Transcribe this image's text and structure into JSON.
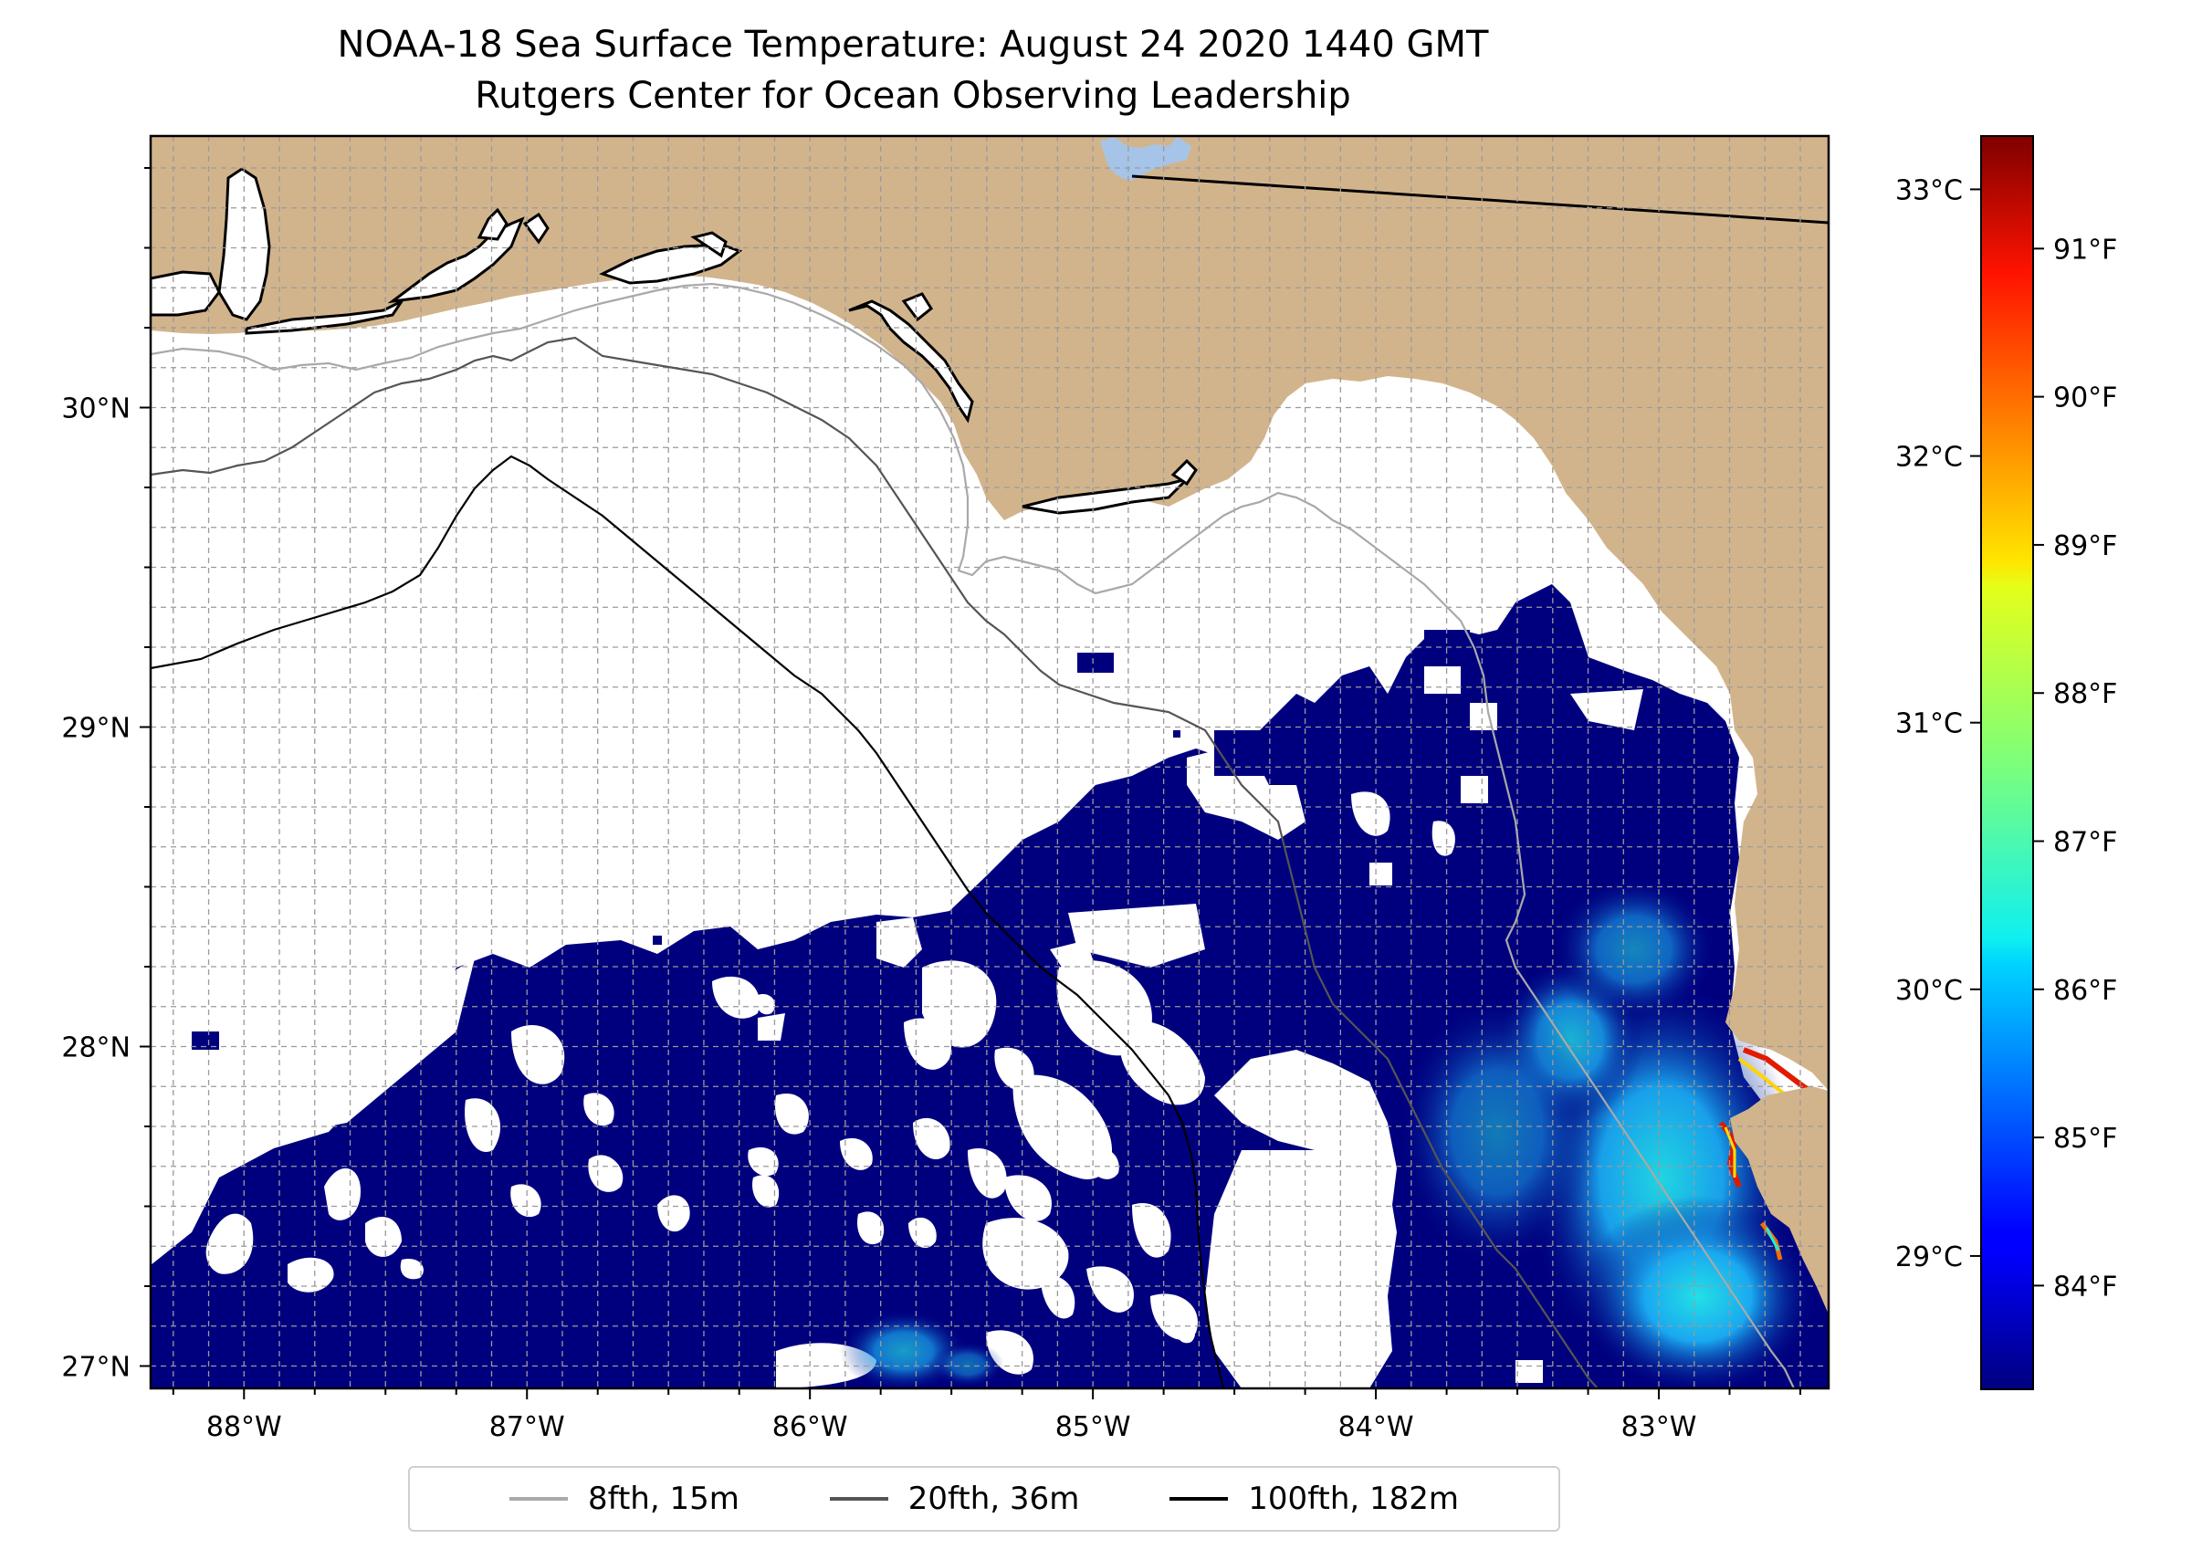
{
  "title": {
    "line1": "NOAA-18 Sea Surface Temperature: August 24 2020 1440 GMT",
    "line2": "Rutgers Center for Ocean Observing Leadership"
  },
  "map": {
    "extent": {
      "lon_min": -88.33,
      "lon_max": -82.4,
      "lat_min": 26.93,
      "lat_max": 30.85
    },
    "colors": {
      "land": "#d2b48c",
      "no_data": "#ffffff",
      "coastline": "#000000",
      "lake": "#a6c4e8",
      "gridline": "#9a9a9a"
    },
    "lon_ticks": [
      {
        "value": -88,
        "label": "88°W"
      },
      {
        "value": -87,
        "label": "87°W"
      },
      {
        "value": -86,
        "label": "86°W"
      },
      {
        "value": -85,
        "label": "85°W"
      },
      {
        "value": -84,
        "label": "84°W"
      },
      {
        "value": -83,
        "label": "83°W"
      }
    ],
    "lat_ticks": [
      {
        "value": 27,
        "label": "27°N"
      },
      {
        "value": 28,
        "label": "28°N"
      },
      {
        "value": 29,
        "label": "29°N"
      },
      {
        "value": 30,
        "label": "30°N"
      }
    ]
  },
  "colorbar": {
    "min_c": 28.5,
    "max_c": 33.2,
    "celsius_ticks": [
      {
        "value": 29,
        "label": "29°C"
      },
      {
        "value": 30,
        "label": "30°C"
      },
      {
        "value": 31,
        "label": "31°C"
      },
      {
        "value": 32,
        "label": "32°C"
      },
      {
        "value": 33,
        "label": "33°C"
      }
    ],
    "fahrenheit_ticks": [
      {
        "value": 84,
        "label": "84°F"
      },
      {
        "value": 85,
        "label": "85°F"
      },
      {
        "value": 86,
        "label": "86°F"
      },
      {
        "value": 87,
        "label": "87°F"
      },
      {
        "value": 88,
        "label": "88°F"
      },
      {
        "value": 89,
        "label": "89°F"
      },
      {
        "value": 90,
        "label": "90°F"
      },
      {
        "value": 91,
        "label": "91°F"
      }
    ],
    "colormap": "jet"
  },
  "legend": {
    "items": [
      {
        "label": "8fth, 15m",
        "color": "#a9a9a9"
      },
      {
        "label": "20fth, 36m",
        "color": "#555555"
      },
      {
        "label": "100fth, 182m",
        "color": "#000000"
      }
    ]
  }
}
